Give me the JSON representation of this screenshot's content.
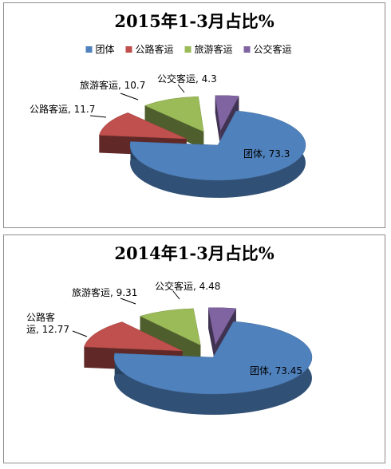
{
  "chart_data": [
    {
      "type": "pie",
      "title": "2015年1-3月占比%",
      "legend": "top",
      "categories": [
        "团体",
        "公路客运",
        "旅游客运",
        "公交客运"
      ],
      "values": [
        73.3,
        11.7,
        10.7,
        4.3
      ],
      "labels": [
        "团体, 73.3",
        "公路客运, 11.7",
        "旅游客运, 10.7",
        "公交客运, 4.3"
      ],
      "colors": [
        "#4f81bd",
        "#c0504d",
        "#9bbb59",
        "#8064a2"
      ]
    },
    {
      "type": "pie",
      "title": "2014年1-3月占比%",
      "legend": "none",
      "categories": [
        "团体",
        "公路客运",
        "旅游客运",
        "公交客运"
      ],
      "values": [
        73.45,
        12.77,
        9.31,
        4.48
      ],
      "labels": [
        "团体, 73.45",
        "公路客\n运, 12.77",
        "旅游客运, 9.31",
        "公交客运, 4.48"
      ],
      "colors": [
        "#4f81bd",
        "#c0504d",
        "#9bbb59",
        "#8064a2"
      ]
    }
  ]
}
